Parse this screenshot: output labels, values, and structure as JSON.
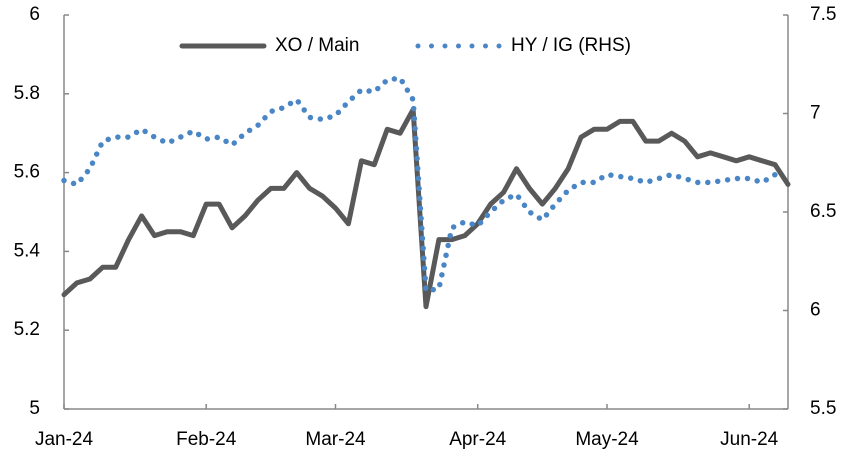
{
  "chart_data": {
    "type": "line",
    "categories": [
      "Jan-24",
      null,
      null,
      null,
      null,
      null,
      null,
      null,
      null,
      null,
      null,
      "Feb-24",
      null,
      null,
      null,
      null,
      null,
      null,
      null,
      null,
      null,
      "Mar-24",
      null,
      null,
      null,
      null,
      null,
      null,
      null,
      null,
      null,
      null,
      "Apr-24",
      null,
      null,
      null,
      null,
      null,
      null,
      null,
      null,
      null,
      "May-24",
      null,
      null,
      null,
      null,
      null,
      null,
      null,
      null,
      null,
      null,
      "Jun-24",
      null,
      null,
      null
    ],
    "series": [
      {
        "name": "XO / Main",
        "color": "#595959",
        "axis": "y",
        "values": [
          5.29,
          5.32,
          5.33,
          5.36,
          5.36,
          5.43,
          5.49,
          5.44,
          5.45,
          5.45,
          5.44,
          5.52,
          5.52,
          5.46,
          5.49,
          5.53,
          5.56,
          5.56,
          5.6,
          5.56,
          5.54,
          5.51,
          5.47,
          5.63,
          5.62,
          5.71,
          5.7,
          5.76,
          5.26,
          5.43,
          5.43,
          5.44,
          5.47,
          5.52,
          5.55,
          5.61,
          5.56,
          5.52,
          5.56,
          5.61,
          5.69,
          5.71,
          5.71,
          5.73,
          5.73,
          5.68,
          5.68,
          5.7,
          5.68,
          5.64,
          5.65,
          5.64,
          5.63,
          5.64,
          5.63,
          5.62,
          5.57
        ]
      },
      {
        "name": "HY / IG (RHS)",
        "color": "#4a86c5",
        "axis": "y2",
        "values": [
          6.66,
          6.64,
          6.72,
          6.86,
          6.88,
          6.88,
          6.92,
          6.88,
          6.85,
          6.88,
          6.91,
          6.87,
          6.88,
          6.84,
          6.9,
          6.94,
          7.01,
          7.03,
          7.07,
          6.98,
          6.97,
          6.99,
          7.06,
          7.12,
          7.11,
          7.17,
          7.18,
          7.07,
          6.1,
          6.11,
          6.42,
          6.45,
          6.43,
          6.5,
          6.56,
          6.59,
          6.5,
          6.46,
          6.54,
          6.61,
          6.65,
          6.65,
          6.69,
          6.68,
          6.67,
          6.65,
          6.67,
          6.69,
          6.67,
          6.65,
          6.65,
          6.66,
          6.67,
          6.67,
          6.65,
          6.69,
          null
        ]
      }
    ],
    "ylim": [
      5,
      6
    ],
    "yticks": [
      5,
      5.2,
      5.4,
      5.6,
      5.8,
      6
    ],
    "y2lim": [
      5.5,
      7.5
    ],
    "y2ticks": [
      5.5,
      6,
      6.5,
      7,
      7.5
    ],
    "grid": false,
    "legend": "top"
  }
}
